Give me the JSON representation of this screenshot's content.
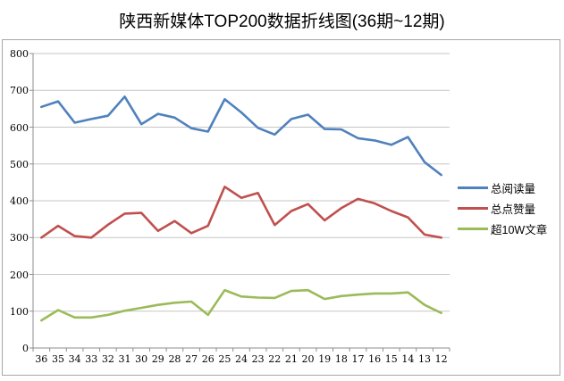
{
  "title": "陕西新媒体TOP200数据折线图(36期~12期)",
  "chart_data": {
    "type": "line",
    "categories": [
      "36",
      "35",
      "34",
      "33",
      "32",
      "31",
      "30",
      "29",
      "28",
      "27",
      "26",
      "25",
      "24",
      "23",
      "22",
      "21",
      "20",
      "19",
      "18",
      "17",
      "16",
      "15",
      "14",
      "13",
      "12"
    ],
    "series": [
      {
        "name": "总阅读量",
        "color": "#4F81BD",
        "values": [
          655,
          670,
          612,
          622,
          631,
          683,
          608,
          636,
          626,
          597,
          588,
          676,
          640,
          598,
          580,
          622,
          634,
          595,
          594,
          570,
          564,
          552,
          573,
          505,
          470
        ]
      },
      {
        "name": "总点赞量",
        "color": "#C0504D",
        "values": [
          300,
          332,
          304,
          300,
          335,
          365,
          367,
          318,
          345,
          312,
          332,
          438,
          408,
          421,
          334,
          372,
          391,
          347,
          380,
          405,
          393,
          372,
          355,
          308,
          300
        ]
      },
      {
        "name": "超10W文章",
        "color": "#9BBB59",
        "values": [
          75,
          103,
          83,
          83,
          90,
          101,
          109,
          117,
          123,
          126,
          90,
          157,
          140,
          137,
          136,
          155,
          157,
          133,
          141,
          145,
          148,
          148,
          151,
          117,
          95
        ]
      }
    ],
    "ylim": [
      0,
      800
    ],
    "yticks": [
      0,
      100,
      200,
      300,
      400,
      500,
      600,
      700,
      800
    ],
    "xlabel": "",
    "ylabel": "",
    "grid": true,
    "legend_position": "right"
  },
  "colors": {
    "background": "#FFFFFF",
    "frame_border": "#A6A6A6",
    "gridline": "#C6C6C6",
    "axis_line": "#8E8E8E",
    "text": "#000000"
  }
}
